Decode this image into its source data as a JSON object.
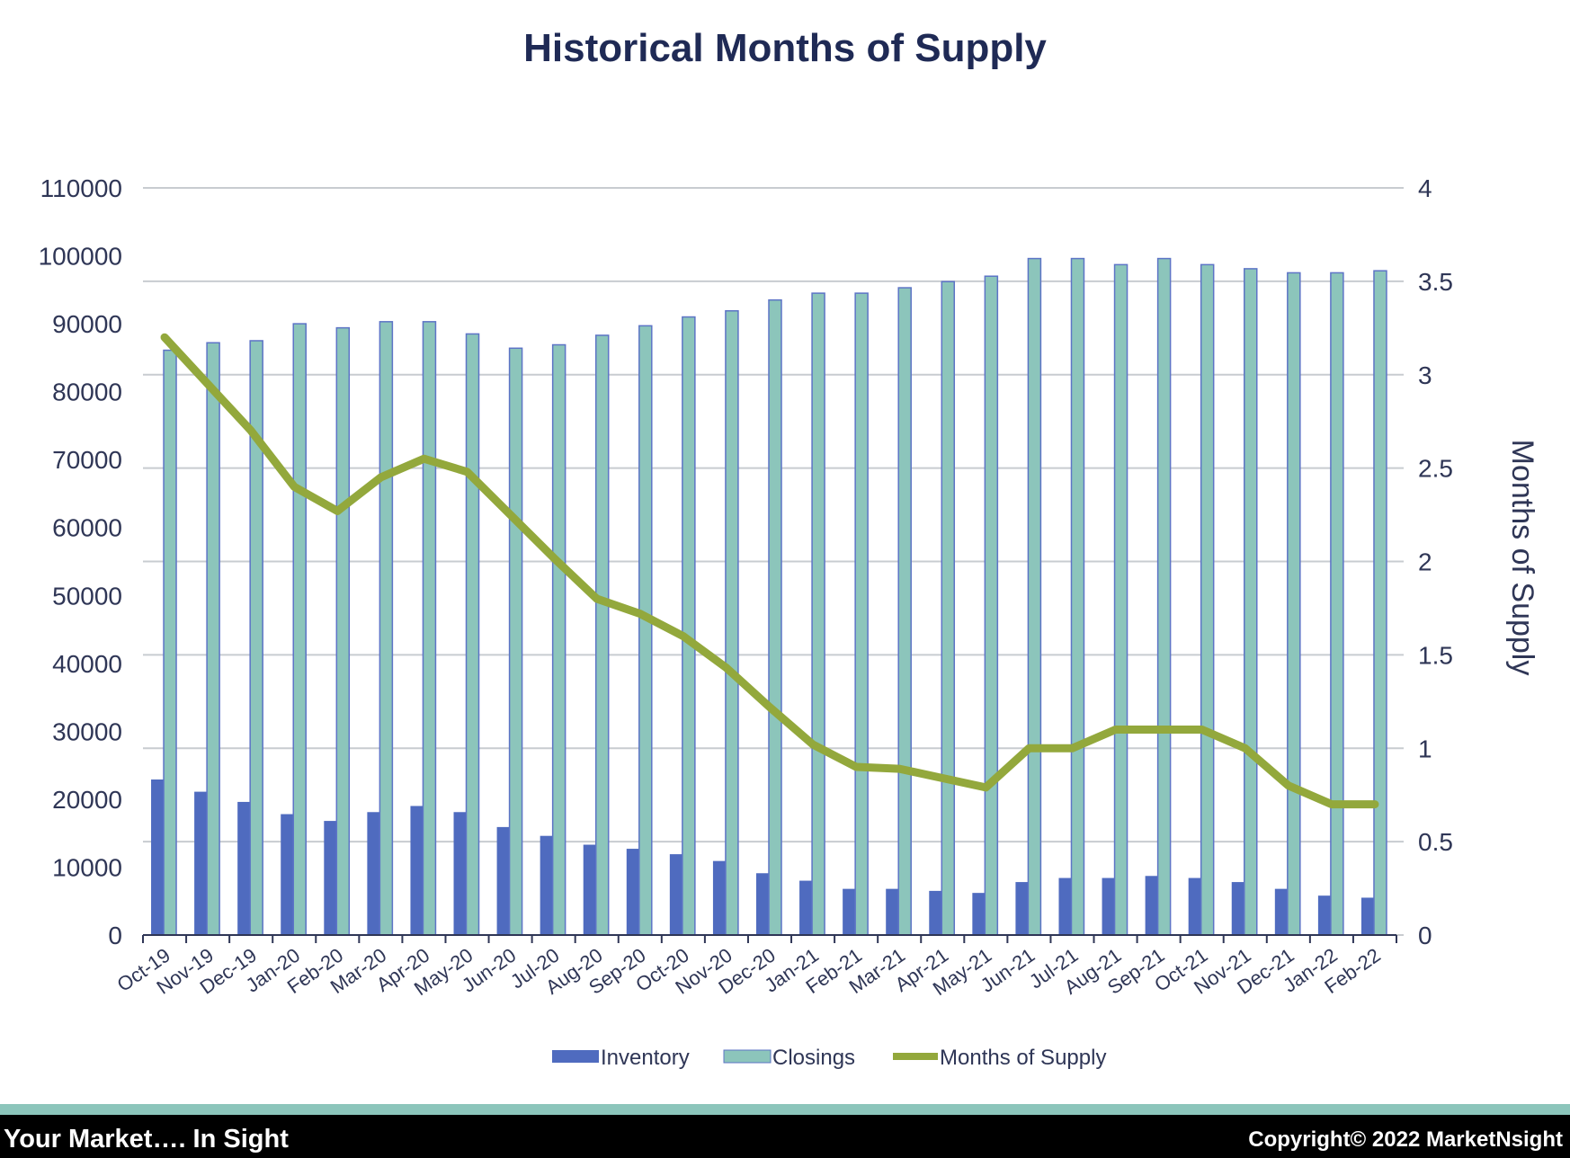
{
  "chart_data": {
    "type": "bar",
    "title": "Historical Months of Supply",
    "categories": [
      "Oct-19",
      "Nov-19",
      "Dec-19",
      "Jan-20",
      "Feb-20",
      "Mar-20",
      "Apr-20",
      "May-20",
      "Jun-20",
      "Jul-20",
      "Aug-20",
      "Sep-20",
      "Oct-20",
      "Nov-20",
      "Dec-20",
      "Jan-21",
      "Feb-21",
      "Mar-21",
      "Apr-21",
      "May-21",
      "Jun-21",
      "Jul-21",
      "Aug-21",
      "Sep-21",
      "Oct-21",
      "Nov-21",
      "Dec-21",
      "Jan-22",
      "Feb-22"
    ],
    "series": [
      {
        "name": "Inventory",
        "type": "bar",
        "axis": "left",
        "color": "#4f6bbf",
        "values": [
          22900,
          21100,
          19600,
          17800,
          16800,
          18100,
          19000,
          18100,
          15900,
          14600,
          13300,
          12700,
          11900,
          10900,
          9100,
          8000,
          6800,
          6800,
          6500,
          6200,
          7800,
          8400,
          8400,
          8700,
          8400,
          7800,
          6800,
          5800,
          5500
        ]
      },
      {
        "name": "Closings",
        "type": "bar",
        "axis": "left",
        "color": "#8cc5bb",
        "values": [
          86100,
          87200,
          87500,
          90000,
          89400,
          90300,
          90300,
          88500,
          86400,
          86900,
          88300,
          89700,
          91000,
          91900,
          93500,
          94500,
          94500,
          95300,
          96200,
          97000,
          99600,
          99600,
          98700,
          99600,
          98700,
          98100,
          97500,
          97500,
          97800
        ]
      },
      {
        "name": "Months of Supply",
        "type": "line",
        "axis": "right",
        "color": "#93a83c",
        "values": [
          3.2,
          2.95,
          2.7,
          2.4,
          2.27,
          2.45,
          2.55,
          2.48,
          2.25,
          2.02,
          1.8,
          1.72,
          1.6,
          1.43,
          1.22,
          1.02,
          0.9,
          0.89,
          0.84,
          0.79,
          1.0,
          1.0,
          1.1,
          1.1,
          1.1,
          1.0,
          0.8,
          0.7,
          0.7
        ]
      }
    ],
    "left_axis": {
      "ylim": [
        0,
        110000
      ],
      "ticks": [
        "0",
        "10000",
        "20000",
        "30000",
        "40000",
        "50000",
        "60000",
        "70000",
        "80000",
        "90000",
        "100000",
        "110000"
      ]
    },
    "right_axis": {
      "ylabel": "Months of Supply",
      "ylim": [
        0,
        4
      ],
      "ticks": [
        "0",
        "0.5",
        "1",
        "1.5",
        "2",
        "2.5",
        "3",
        "3.5",
        "4"
      ]
    },
    "grid": true,
    "legend": "bottom"
  },
  "footer": {
    "tagline": "Your Market….  In Sight",
    "copyright": "Copyright© 2022 MarketNsight",
    "stripe_color": "#8cc5bb"
  }
}
